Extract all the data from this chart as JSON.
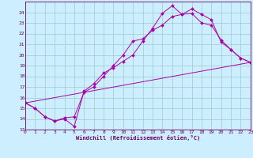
{
  "xlabel": "Windchill (Refroidissement éolien,°C)",
  "bg_color": "#cceeff",
  "line_color": "#aa00aa",
  "grid_color": "#99cccc",
  "xmin": 0,
  "xmax": 23,
  "ymin": 13,
  "ymax": 25,
  "yticks": [
    13,
    14,
    15,
    16,
    17,
    18,
    19,
    20,
    21,
    22,
    23,
    24
  ],
  "xticks": [
    0,
    1,
    2,
    3,
    4,
    5,
    6,
    7,
    8,
    9,
    10,
    11,
    12,
    13,
    14,
    15,
    16,
    17,
    18,
    19,
    20,
    21,
    22,
    23
  ],
  "line1_x": [
    0,
    1,
    2,
    3,
    4,
    5,
    6,
    7,
    8,
    9,
    10,
    11,
    12,
    13,
    14,
    15,
    16,
    17,
    18,
    19,
    20,
    21,
    22,
    23
  ],
  "line1_y": [
    15.5,
    15.0,
    14.2,
    13.8,
    14.0,
    13.3,
    16.6,
    17.3,
    18.3,
    18.8,
    19.4,
    20.0,
    21.3,
    22.5,
    23.9,
    24.6,
    23.8,
    23.9,
    23.0,
    22.8,
    21.4,
    20.5,
    19.7,
    19.3
  ],
  "line2_x": [
    0,
    1,
    2,
    3,
    4,
    5,
    6,
    7,
    8,
    9,
    10,
    11,
    12,
    13,
    14,
    15,
    16,
    17,
    18,
    19,
    20,
    21,
    22,
    23
  ],
  "line2_y": [
    15.5,
    15.0,
    14.2,
    13.8,
    14.1,
    14.2,
    16.5,
    17.0,
    18.0,
    19.0,
    20.0,
    21.3,
    21.5,
    22.3,
    22.8,
    23.6,
    23.8,
    24.3,
    23.8,
    23.3,
    21.2,
    20.5,
    19.7,
    19.3
  ],
  "line3_x": [
    0,
    23
  ],
  "line3_y": [
    15.5,
    19.3
  ]
}
